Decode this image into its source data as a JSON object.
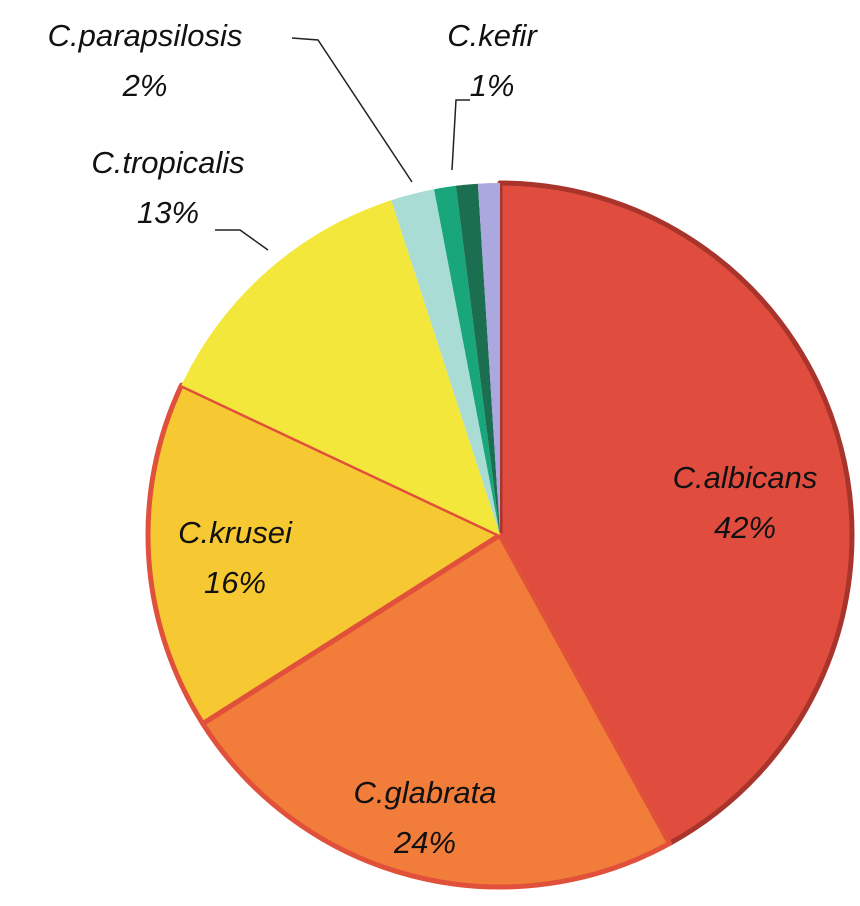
{
  "chart_data": {
    "type": "pie",
    "categories": [
      "C.albicans",
      "C.glabrata",
      "C.krusei",
      "C.tropicalis",
      "C.parapsilosis",
      "C.kefir",
      null,
      null
    ],
    "values": [
      42,
      24,
      16,
      13,
      2,
      1,
      1,
      1
    ],
    "value_labels": [
      "42%",
      "24%",
      "16%",
      "13%",
      "2%",
      "1%",
      null,
      null
    ],
    "colors": [
      "#e04d3f",
      "#f27d3b",
      "#f6c932",
      "#f4e73c",
      "#a9dcd4",
      "#18a67a",
      "#1b6e50",
      "#aaa8de"
    ]
  }
}
